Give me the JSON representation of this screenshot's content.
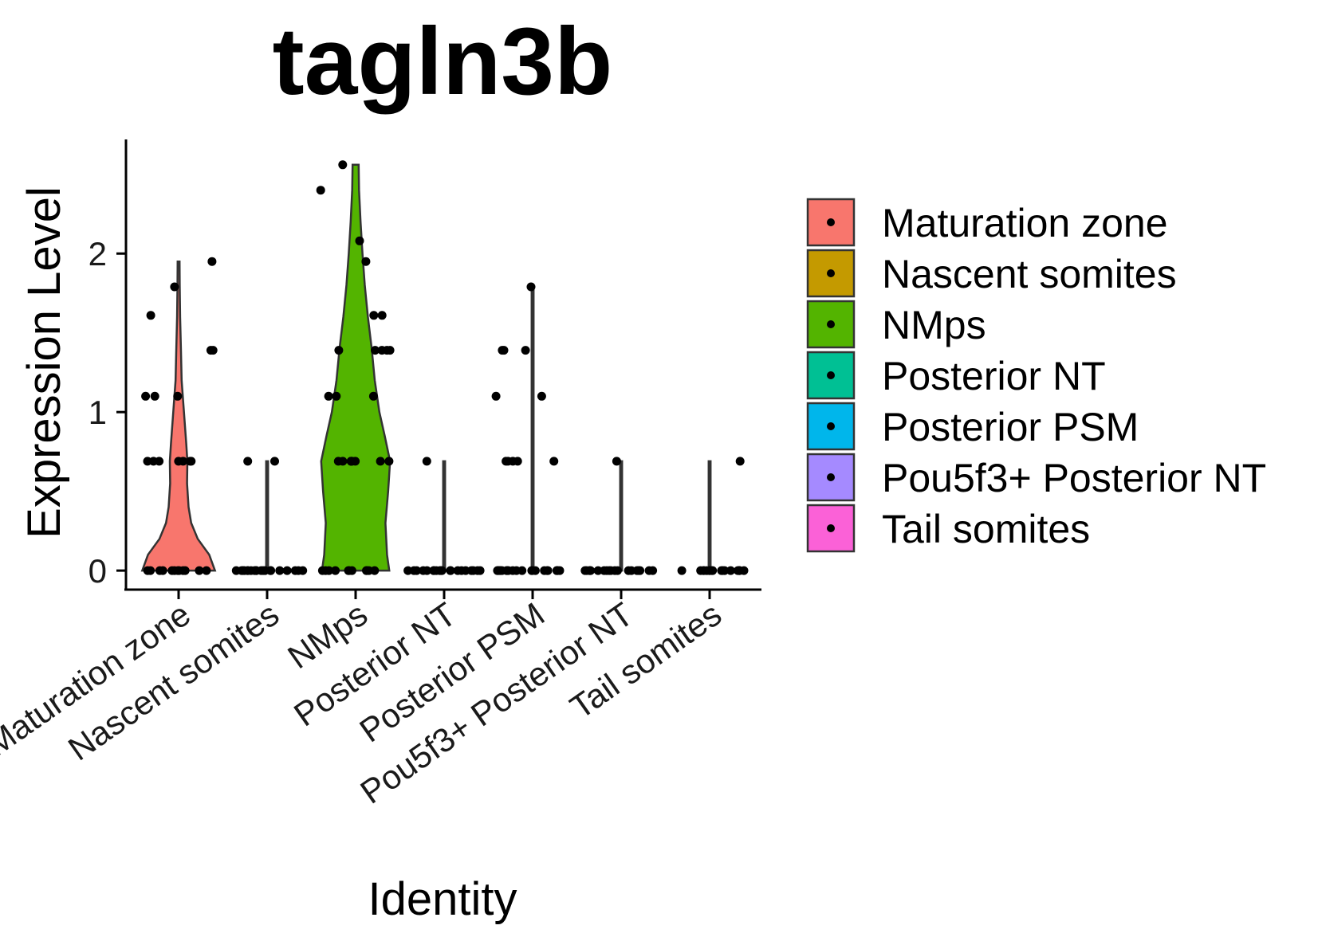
{
  "chart_data": {
    "type": "violin",
    "title": "tagln3b",
    "xlabel": "Identity",
    "ylabel": "Expression Level",
    "ylim": [
      -0.12,
      2.72
    ],
    "yticks": [
      0,
      1,
      2
    ],
    "grid": false,
    "legend_position": "right",
    "categories": [
      "Maturation zone",
      "Nascent somites",
      "NMps",
      "Posterior NT",
      "Posterior PSM",
      "Pou5f3+ Posterior NT",
      "Tail somites"
    ],
    "series": [
      {
        "name": "Maturation zone",
        "color": "#F8766D",
        "max": 1.95,
        "density": [
          [
            0,
            0.95
          ],
          [
            0.1,
            0.8
          ],
          [
            0.2,
            0.5
          ],
          [
            0.3,
            0.33
          ],
          [
            0.4,
            0.26
          ],
          [
            0.55,
            0.22
          ],
          [
            0.69,
            0.23
          ],
          [
            0.8,
            0.2
          ],
          [
            1.0,
            0.14
          ],
          [
            1.2,
            0.08
          ],
          [
            1.4,
            0.06
          ],
          [
            1.6,
            0.04
          ],
          [
            1.8,
            0.03
          ],
          [
            1.95,
            0.02
          ]
        ],
        "points": [
          0,
          0,
          0,
          0,
          0,
          0,
          0,
          0,
          0,
          0,
          0,
          0,
          0.69,
          0.69,
          0.69,
          0.69,
          0.69,
          0.69,
          0.69,
          1.1,
          1.1,
          1.1,
          1.39,
          1.39,
          1.61,
          1.79,
          1.95
        ]
      },
      {
        "name": "Nascent somites",
        "color": "#C49A00",
        "max": 0.69,
        "density": [
          [
            0,
            0.01
          ],
          [
            0.69,
            0.01
          ]
        ],
        "points": [
          0,
          0,
          0,
          0,
          0,
          0,
          0,
          0,
          0,
          0,
          0,
          0,
          0,
          0,
          0,
          0,
          0,
          0,
          0,
          0,
          0.69,
          0.69
        ]
      },
      {
        "name": "NMps",
        "color": "#53B400",
        "max": 2.56,
        "density": [
          [
            0,
            0.88
          ],
          [
            0.1,
            0.82
          ],
          [
            0.3,
            0.78
          ],
          [
            0.5,
            0.85
          ],
          [
            0.69,
            0.9
          ],
          [
            0.85,
            0.76
          ],
          [
            1.0,
            0.62
          ],
          [
            1.2,
            0.5
          ],
          [
            1.4,
            0.42
          ],
          [
            1.6,
            0.32
          ],
          [
            1.8,
            0.24
          ],
          [
            2.0,
            0.18
          ],
          [
            2.2,
            0.13
          ],
          [
            2.4,
            0.09
          ],
          [
            2.56,
            0.08
          ]
        ],
        "points": [
          0,
          0,
          0,
          0,
          0,
          0,
          0,
          0,
          0,
          0,
          0,
          0.69,
          0.69,
          0.69,
          0.69,
          0.69,
          0.69,
          0.69,
          0.69,
          0.69,
          1.1,
          1.1,
          1.1,
          1.39,
          1.39,
          1.39,
          1.39,
          1.39,
          1.61,
          1.61,
          1.95,
          2.08,
          2.4,
          2.56
        ]
      },
      {
        "name": "Posterior NT",
        "color": "#00C094",
        "max": 0.69,
        "density": [
          [
            0,
            0.01
          ],
          [
            0.69,
            0.01
          ]
        ],
        "points": [
          0,
          0,
          0,
          0,
          0,
          0,
          0,
          0,
          0,
          0,
          0,
          0,
          0,
          0,
          0,
          0,
          0,
          0,
          0,
          0,
          0.69
        ]
      },
      {
        "name": "Posterior PSM",
        "color": "#00B6EB",
        "max": 1.79,
        "density": [
          [
            0,
            0.01
          ],
          [
            1.79,
            0.01
          ]
        ],
        "points": [
          0,
          0,
          0,
          0,
          0,
          0,
          0,
          0,
          0,
          0,
          0,
          0,
          0,
          0,
          0,
          0,
          0,
          0,
          0,
          0,
          0,
          0,
          0.69,
          0.69,
          0.69,
          0.69,
          0.69,
          1.1,
          1.1,
          1.39,
          1.39,
          1.39,
          1.79
        ]
      },
      {
        "name": "Pou5f3+ Posterior NT",
        "color": "#A58AFF",
        "max": 0.69,
        "density": [
          [
            0,
            0.01
          ],
          [
            0.69,
            0.01
          ]
        ],
        "points": [
          0,
          0,
          0,
          0,
          0,
          0,
          0,
          0,
          0,
          0,
          0,
          0,
          0,
          0,
          0,
          0,
          0,
          0,
          0,
          0.69
        ]
      },
      {
        "name": "Tail somites",
        "color": "#FB61D7",
        "max": 0.69,
        "density": [
          [
            0,
            0.01
          ],
          [
            0.69,
            0.01
          ]
        ],
        "points": [
          0,
          0,
          0,
          0,
          0,
          0,
          0,
          0,
          0,
          0,
          0,
          0,
          0,
          0,
          0,
          0,
          0,
          0,
          0.69
        ]
      }
    ]
  }
}
